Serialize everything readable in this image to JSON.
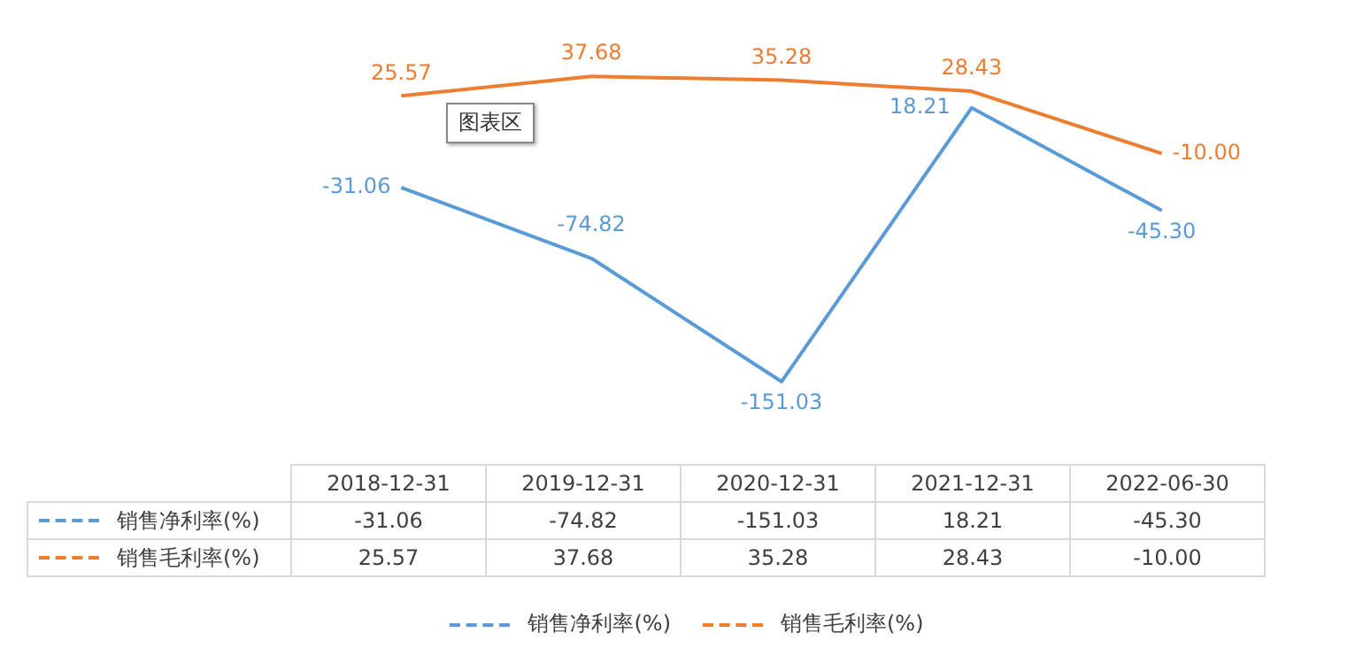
{
  "chart_data": {
    "type": "line",
    "categories": [
      "2018-12-31",
      "2019-12-31",
      "2020-12-31",
      "2021-12-31",
      "2022-06-30"
    ],
    "series": [
      {
        "name": "销售净利率(%)",
        "color": "#5b9bd5",
        "values": [
          -31.06,
          -74.82,
          -151.03,
          18.21,
          -45.3
        ],
        "value_labels": [
          "-31.06",
          "-74.82",
          "-151.03",
          "18.21",
          "-45.30"
        ]
      },
      {
        "name": "销售毛利率(%)",
        "color": "#ed7d31",
        "values": [
          25.57,
          37.68,
          35.28,
          28.43,
          -10.0
        ],
        "value_labels": [
          "25.57",
          "37.68",
          "35.28",
          "28.43",
          "-10.00"
        ]
      }
    ],
    "marker": "none",
    "line_style": "solid",
    "legend": "bottom",
    "grid": false,
    "annotations": [
      "图表区"
    ]
  }
}
